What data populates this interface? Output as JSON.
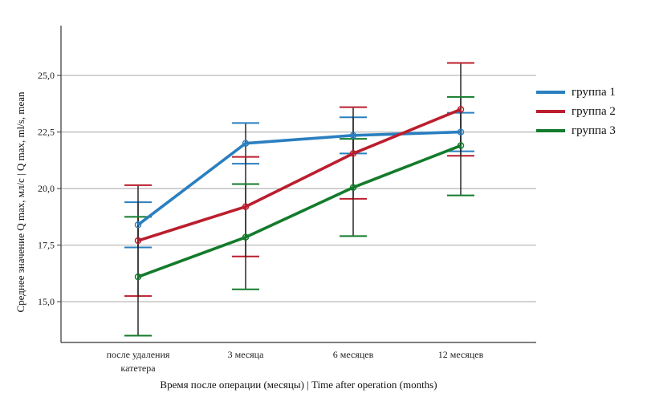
{
  "chart_data": {
    "type": "line",
    "xlabel": "Время после операции (месяцы) | Time after operation (months)",
    "ylabel": "Среднее значение Q max, мл/с | Q max, ml/s, mean",
    "categories": [
      [
        "после удаления",
        "катетера"
      ],
      [
        "3 месяца"
      ],
      [
        "6 месяцев"
      ],
      [
        "12 месяцев"
      ]
    ],
    "ylim": [
      13.2,
      27.2
    ],
    "yticks": [
      "15,0",
      "17,5",
      "20,0",
      "22,5",
      "25,0"
    ],
    "ytick_values": [
      15.0,
      17.5,
      20.0,
      22.5,
      25.0
    ],
    "grid": true,
    "legend_position": "right",
    "series": [
      {
        "name": "группа 1",
        "color": "#2a7fc0",
        "values": [
          18.4,
          22.0,
          22.35,
          22.5
        ],
        "err_low": [
          17.4,
          21.1,
          21.55,
          21.65
        ],
        "err_high": [
          19.4,
          22.9,
          23.15,
          23.35
        ]
      },
      {
        "name": "группа 2",
        "color": "#bb1e2d",
        "values": [
          17.7,
          19.2,
          21.55,
          23.5
        ],
        "err_low": [
          15.25,
          17.0,
          19.55,
          21.45
        ],
        "err_high": [
          20.15,
          21.4,
          23.6,
          25.55
        ]
      },
      {
        "name": "группа 3",
        "color": "#137b2b",
        "values": [
          16.1,
          17.85,
          20.05,
          21.9
        ],
        "err_low": [
          13.5,
          15.55,
          17.9,
          19.7
        ],
        "err_high": [
          18.75,
          20.2,
          22.2,
          24.05
        ]
      }
    ]
  }
}
